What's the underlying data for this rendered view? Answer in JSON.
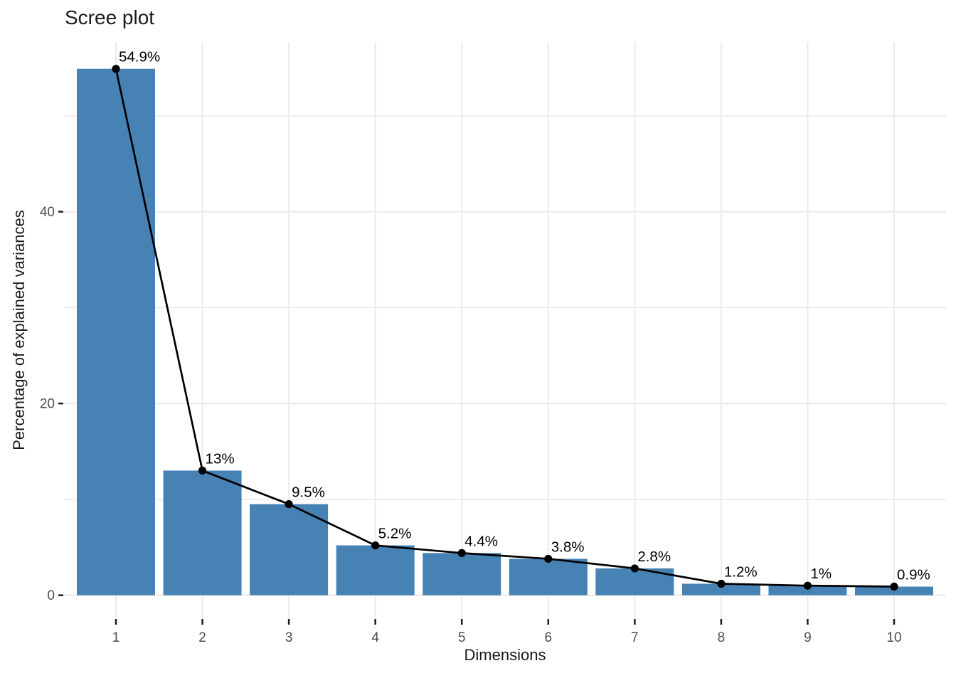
{
  "chart_data": {
    "type": "bar",
    "overlay": "line-with-points",
    "title": "Scree plot",
    "xlabel": "Dimensions",
    "ylabel": "Percentage of explained variances",
    "categories": [
      "1",
      "2",
      "3",
      "4",
      "5",
      "6",
      "7",
      "8",
      "9",
      "10"
    ],
    "values": [
      54.9,
      13,
      9.5,
      5.2,
      4.4,
      3.8,
      2.8,
      1.2,
      1,
      0.9
    ],
    "point_labels": [
      "54.9%",
      "13%",
      "9.5%",
      "5.2%",
      "4.4%",
      "3.8%",
      "2.8%",
      "1.2%",
      "1%",
      "0.9%"
    ],
    "y_tick_labels": [
      "0",
      "20",
      "40"
    ],
    "y_ticks_major": [
      0,
      20,
      40
    ],
    "y_gridlines_minor": [
      10,
      30,
      50
    ],
    "ylim": [
      -2.4,
      57.7
    ],
    "grid": "on",
    "legend": "none",
    "colors": {
      "bar_fill": "#4682B4",
      "line": "#000000",
      "point": "#000000",
      "point_label_text": "#000000",
      "grid": "#EBEBEB",
      "tick_mark": "#1A1A1A",
      "tick_label_text": "#4D4D4D",
      "title_text": "#1A1A1A",
      "background": "#FFFFFF"
    }
  }
}
